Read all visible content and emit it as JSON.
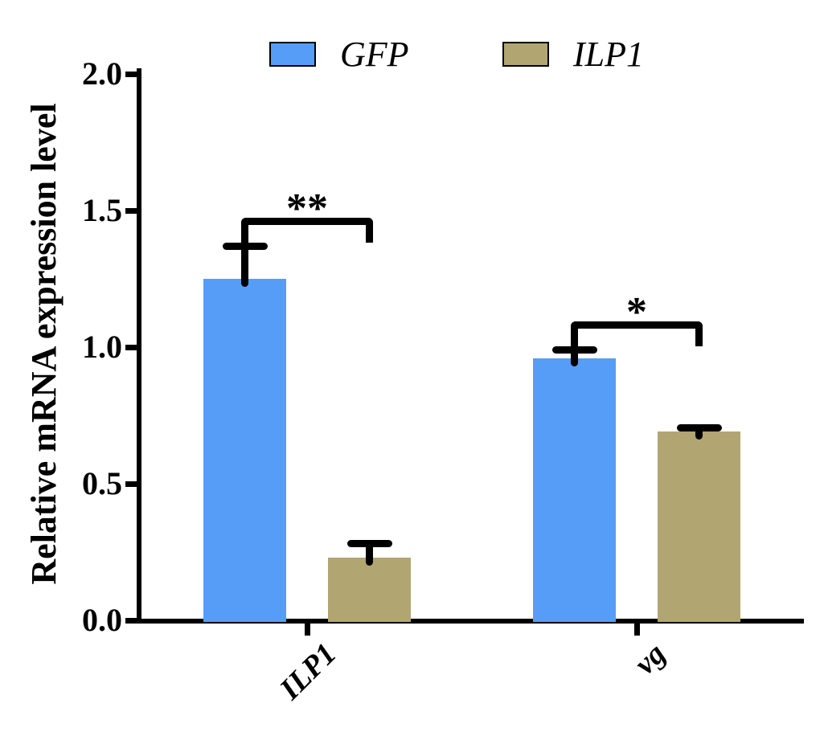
{
  "chart_data": {
    "type": "bar",
    "title": "",
    "xlabel": "",
    "ylabel": "Relative mRNA expression level",
    "categories": [
      "ILP1",
      "vg"
    ],
    "series": [
      {
        "name": "GFP",
        "color": "#569df8",
        "values": [
          1.25,
          0.96
        ],
        "errors": [
          0.12,
          0.03
        ]
      },
      {
        "name": "ILP1",
        "color": "#b1a671",
        "values": [
          0.23,
          0.69
        ],
        "errors": [
          0.05,
          0.015
        ]
      }
    ],
    "error_bars": "upper only, black caps",
    "ylim": [
      0.0,
      2.0
    ],
    "ytick_step": 0.5,
    "yticks": [
      "0.0",
      "0.5",
      "1.0",
      "1.5",
      "2.0"
    ],
    "grid": "off",
    "legend_position": "top",
    "significance": [
      {
        "category": "ILP1",
        "label": "**"
      },
      {
        "category": "vg",
        "label": "*"
      }
    ],
    "colors": {
      "axis": "#000000",
      "background": "#ffffff",
      "series_gfp": "#569df8",
      "series_ilp1": "#b1a671"
    }
  }
}
